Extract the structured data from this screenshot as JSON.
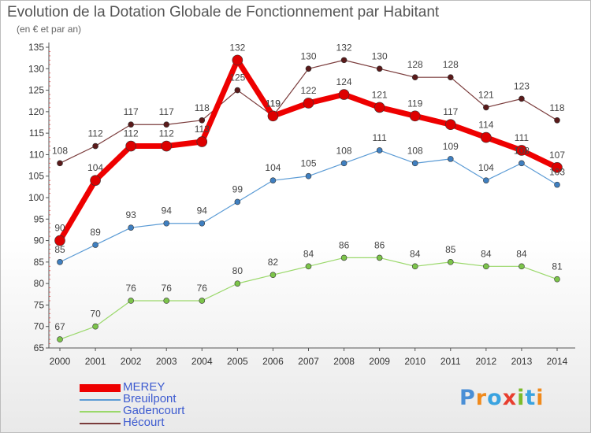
{
  "title": "Evolution de la Dotation Globale de Fonctionnement par Habitant",
  "subtitle": "(en € et par an)",
  "logo": {
    "text": "Proxiti",
    "colors": [
      "#4a8fd6",
      "#f08a1c",
      "#3aa3e0",
      "#e83e2f",
      "#7bbb2b",
      "#3aa3e0",
      "#f08a1c"
    ]
  },
  "chart_data": {
    "type": "line",
    "x": [
      2000,
      2001,
      2002,
      2003,
      2004,
      2005,
      2006,
      2007,
      2008,
      2009,
      2010,
      2011,
      2012,
      2013,
      2014
    ],
    "ylim": [
      65,
      135
    ],
    "yticks": [
      65,
      70,
      75,
      80,
      85,
      90,
      95,
      100,
      105,
      110,
      115,
      120,
      125,
      130,
      135
    ],
    "grid": false,
    "legend_position": "bottom-left",
    "series": [
      {
        "name": "Hécourt",
        "color": "#7a3b3b",
        "marker": "#5a1a1a",
        "width": 1.2,
        "r": 3.5,
        "values": [
          108,
          112,
          117,
          117,
          118,
          125,
          119,
          130,
          132,
          130,
          128,
          128,
          121,
          123,
          118
        ]
      },
      {
        "name": "Breuilpont",
        "color": "#5b9bd5",
        "marker": "#3f7fc0",
        "width": 1.2,
        "r": 3.5,
        "values": [
          85,
          89,
          93,
          94,
          94,
          99,
          104,
          105,
          108,
          111,
          108,
          109,
          104,
          108,
          103
        ]
      },
      {
        "name": "Gadencourt",
        "color": "#9ad86a",
        "marker": "#7cc44a",
        "width": 1.2,
        "r": 3.5,
        "values": [
          67,
          70,
          76,
          76,
          76,
          80,
          82,
          84,
          86,
          86,
          84,
          85,
          84,
          84,
          81
        ]
      },
      {
        "name": "MEREY",
        "color": "#ee0000",
        "marker": "#dd0000",
        "width": 7,
        "r": 6.5,
        "values": [
          90,
          104,
          112,
          112,
          113,
          132,
          119,
          122,
          124,
          121,
          119,
          117,
          114,
          111,
          107
        ]
      }
    ],
    "legend_order": [
      "MEREY",
      "Breuilpont",
      "Gadencourt",
      "Hécourt"
    ]
  }
}
